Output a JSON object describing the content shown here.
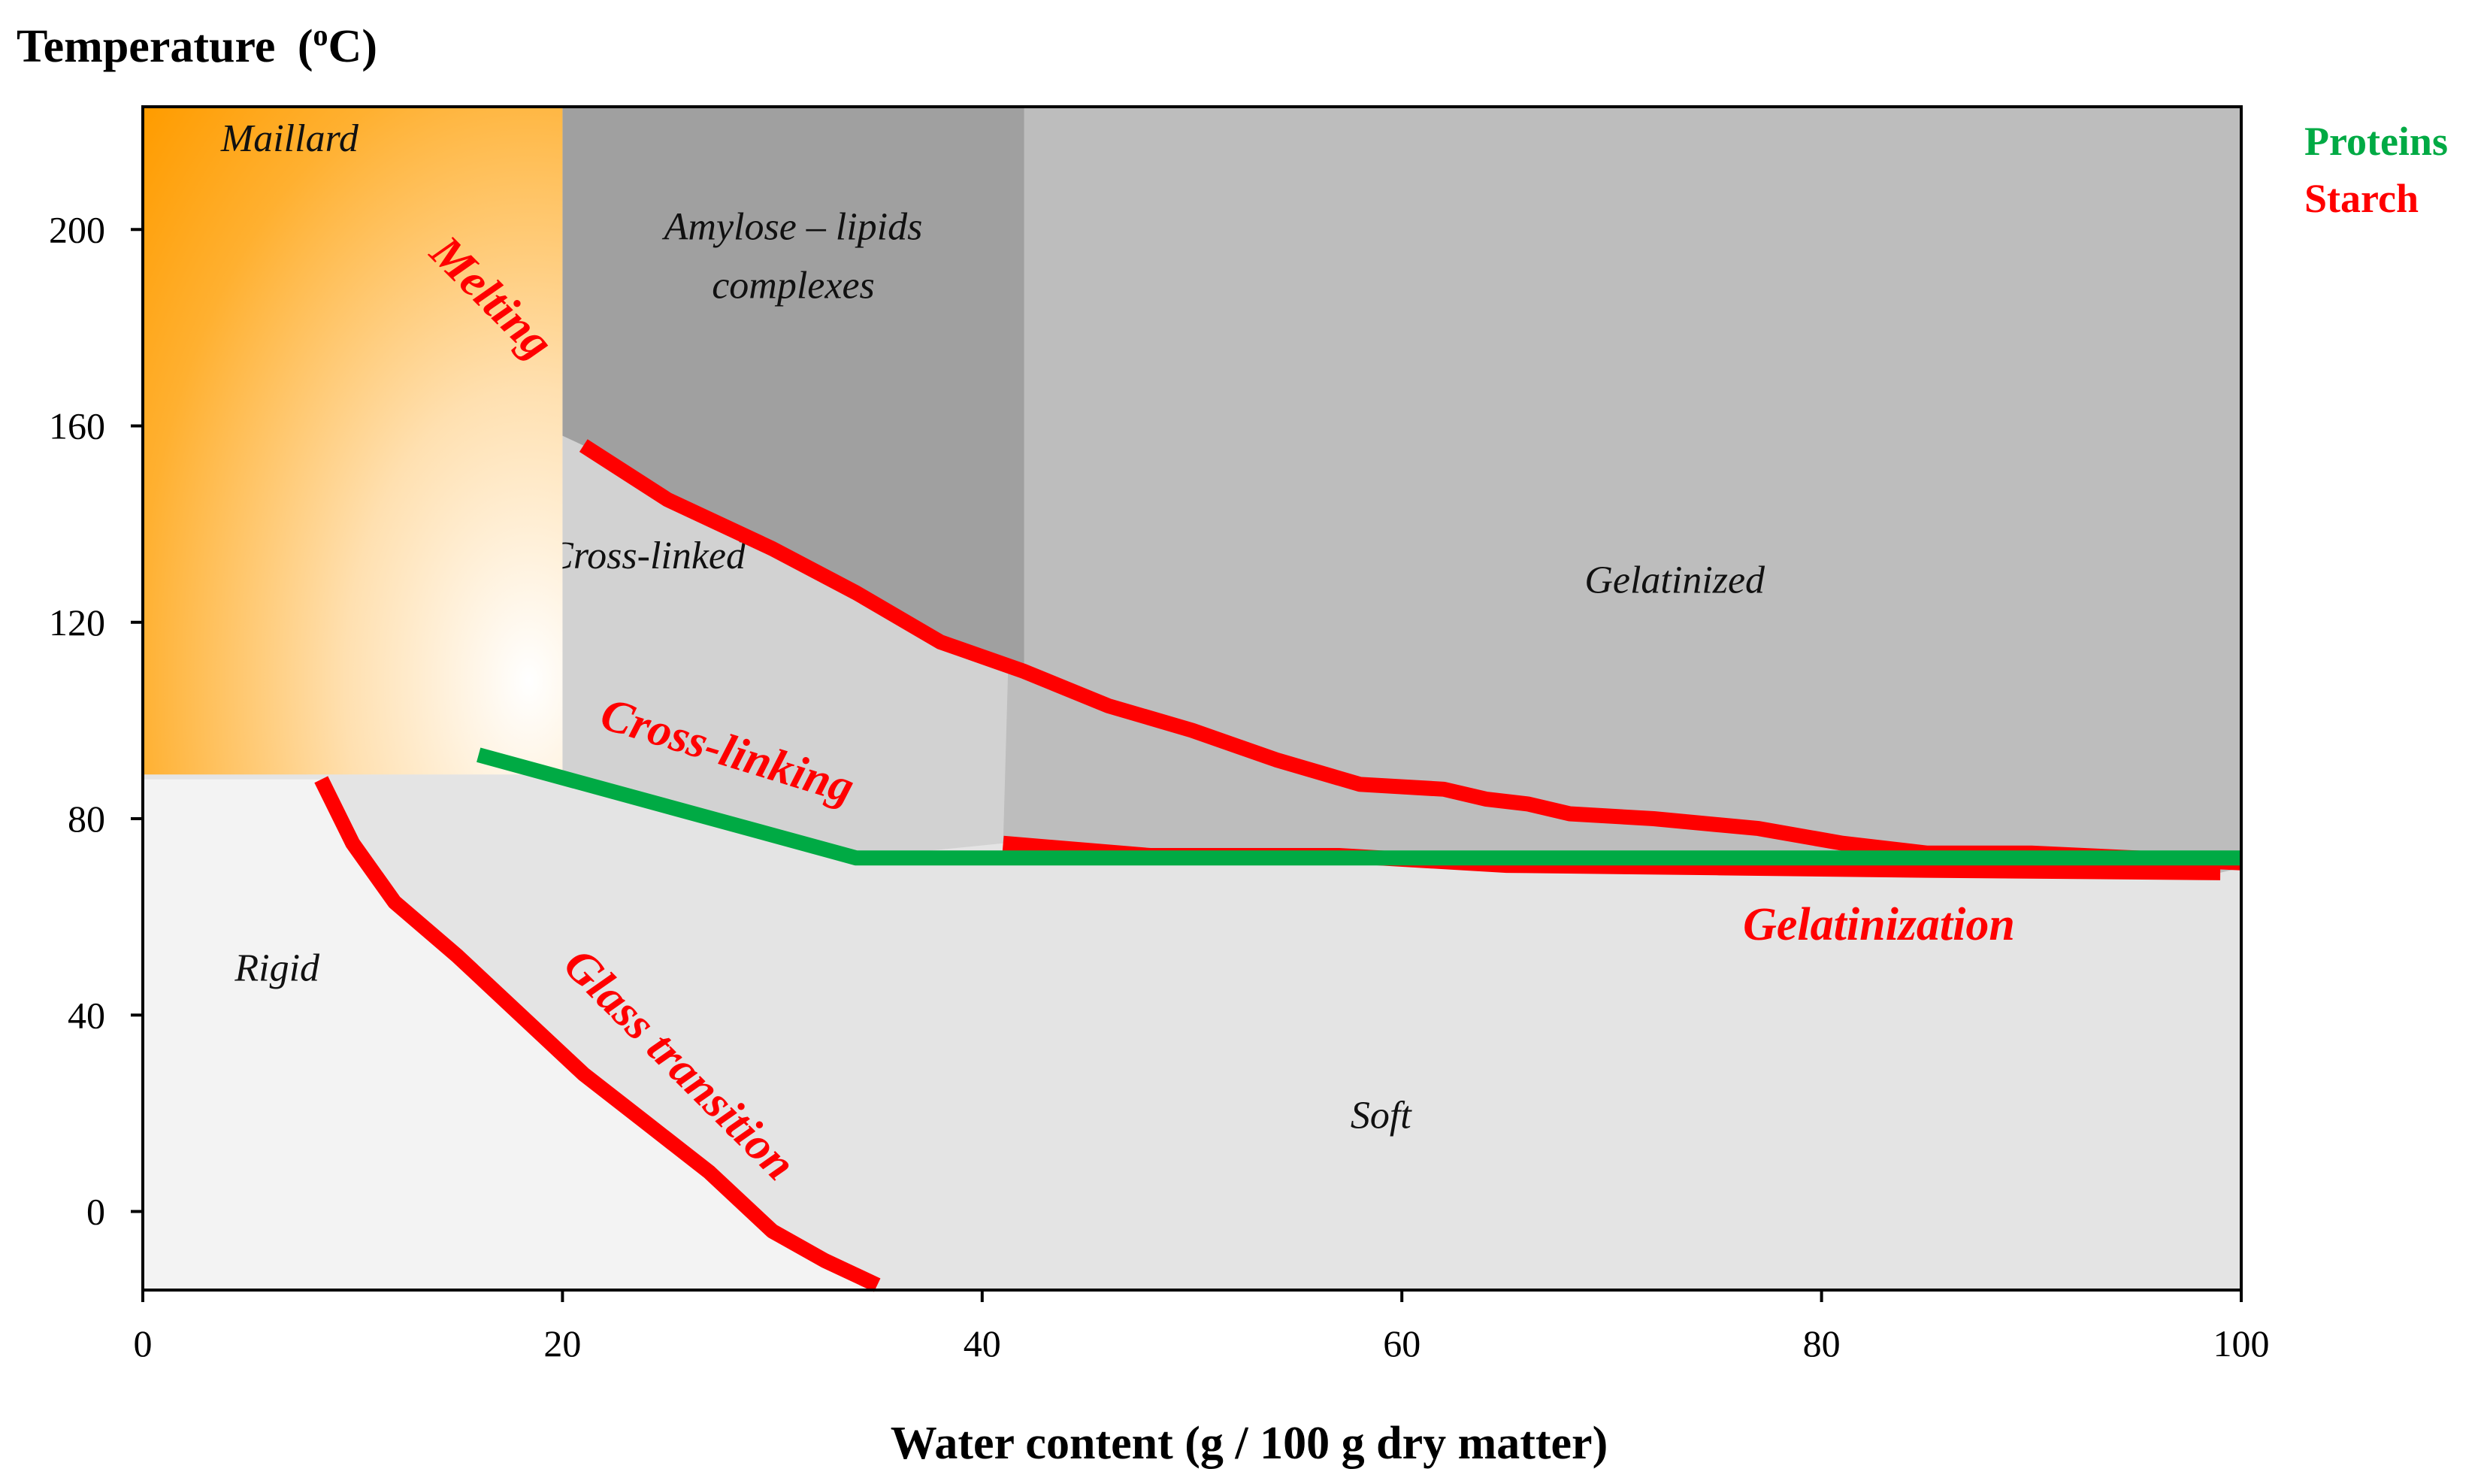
{
  "chart_data": {
    "type": "line",
    "title": "",
    "ylabel": "Temperature",
    "ylabel_unit_prefix": "(",
    "ylabel_unit_super": "o",
    "ylabel_unit_suffix": "C)",
    "xlabel": "Water content (g / 100 g dry matter)",
    "xlim": [
      0,
      100
    ],
    "ylim": [
      -16,
      225
    ],
    "xticks": [
      0,
      20,
      40,
      60,
      80,
      100
    ],
    "yticks": [
      0,
      40,
      80,
      120,
      160,
      200
    ],
    "legend": [
      {
        "label": "Proteins",
        "color": "#00aa44"
      },
      {
        "label": "Starch",
        "color": "#ff0000"
      }
    ],
    "regions": [
      {
        "name": "maillard",
        "label": "Maillard",
        "at": [
          7,
          216
        ]
      },
      {
        "name": "amylose",
        "label": "Amylose – lipids",
        "label2": "complexes",
        "at": [
          31,
          198
        ]
      },
      {
        "name": "cross-linked",
        "label": "Cross-linked",
        "at": [
          24,
          131
        ]
      },
      {
        "name": "gelatinized",
        "label": "Gelatinized",
        "at": [
          73,
          126
        ]
      },
      {
        "name": "rigid",
        "label": "Rigid",
        "at": [
          6.4,
          47
        ]
      },
      {
        "name": "soft",
        "label": "Soft",
        "at": [
          59,
          17
        ]
      }
    ],
    "series": [
      {
        "name": "melting",
        "label": "Melting",
        "color": "#ff0000",
        "x": [
          21,
          25,
          30,
          34,
          38,
          42,
          46,
          50,
          54,
          58,
          62,
          64,
          66,
          68,
          72,
          77,
          81,
          85,
          90,
          95,
          100
        ],
        "y": [
          156,
          145,
          135,
          126,
          116,
          110,
          103,
          98,
          92,
          87,
          86,
          84,
          83,
          81,
          80,
          78,
          75,
          73,
          73,
          72,
          71
        ]
      },
      {
        "name": "gelatinization",
        "label": "Gelatinization",
        "color": "#ff0000",
        "x": [
          41,
          48,
          57,
          65,
          75,
          85,
          99
        ],
        "y": [
          75,
          72.5,
          72.5,
          70.5,
          70,
          69.5,
          69
        ]
      },
      {
        "name": "cross-linking",
        "label": "Cross-linking",
        "color": "#00aa44",
        "x": [
          16,
          34,
          100
        ],
        "y": [
          93,
          72,
          72
        ]
      },
      {
        "name": "glass-transition",
        "label": "Glass transition",
        "color": "#ff0000",
        "x": [
          8.5,
          10,
          12,
          15,
          18,
          21,
          24,
          27,
          30,
          32.5,
          35
        ],
        "y": [
          88,
          75,
          63,
          52,
          40,
          28,
          18,
          8,
          -4,
          -10,
          -15
        ]
      }
    ]
  }
}
